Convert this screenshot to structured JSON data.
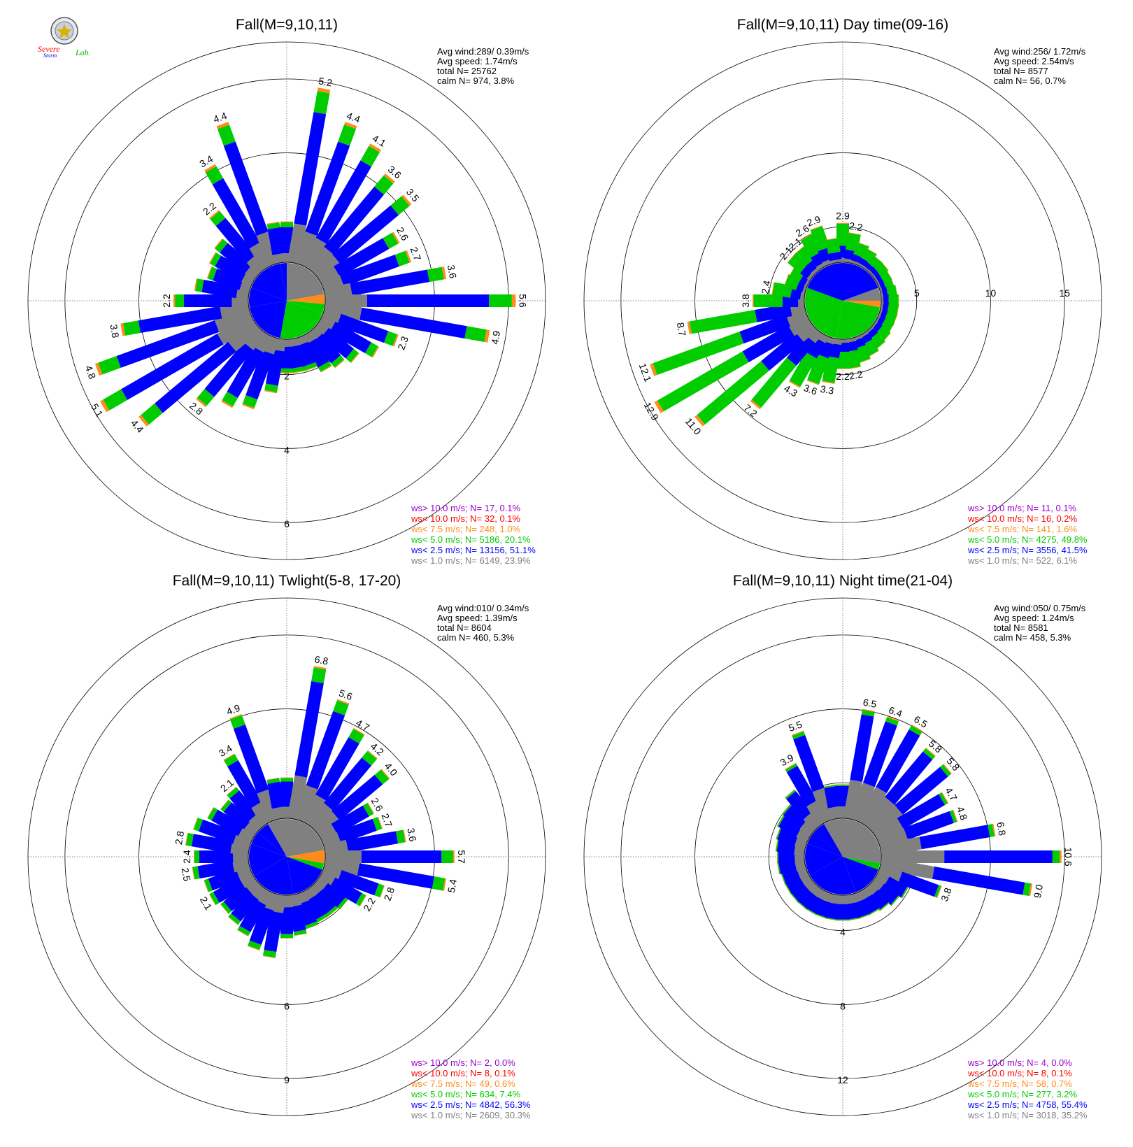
{
  "logo": {
    "text_top": "Severe",
    "text_bottom": "Storm",
    "text_lab": "Lab."
  },
  "colors": {
    "calm": "#808080",
    "ws1": "#808080",
    "ws2_5": "#0000ff",
    "ws5": "#00cc00",
    "ws7_5": "#ff8c1a",
    "ws10": "#ff0000",
    "ws_gt10": "#9900cc"
  },
  "chart_data": [
    {
      "type": "polar-bar",
      "title": "Fall(M=9,10,11)",
      "stats": [
        "Avg wind:289/ 0.39m/s",
        "Avg speed: 1.74m/s",
        "total N=     25762",
        "calm N=    974,   3.8%"
      ],
      "rings": [
        "2",
        "4",
        "6"
      ],
      "rmax": 7,
      "calm_pct": 3.8,
      "directions_deg": [
        0,
        10,
        20,
        30,
        40,
        50,
        60,
        70,
        80,
        90,
        100,
        110,
        120,
        130,
        140,
        150,
        160,
        170,
        180,
        190,
        200,
        210,
        220,
        230,
        240,
        250,
        260,
        270,
        280,
        290,
        300,
        310,
        320,
        330,
        340,
        350
      ],
      "totals": [
        1.2,
        5.2,
        4.4,
        4.1,
        3.6,
        3.5,
        2.6,
        2.7,
        3.6,
        5.6,
        4.9,
        2.3,
        1.9,
        1.5,
        1.3,
        1.2,
        1.0,
        1.0,
        1.0,
        1.6,
        2.2,
        2.4,
        2.8,
        4.4,
        5.1,
        4.8,
        3.8,
        2.2,
        1.6,
        1.3,
        1.4,
        1.5,
        2.2,
        3.4,
        4.4,
        1.2
      ],
      "labels": [
        "",
        "5.2",
        "4.4",
        "4.1",
        "3.6",
        "3.5",
        "2.6",
        "2.7",
        "3.6",
        "5.6",
        "4.9",
        "2.3",
        "",
        "",
        "",
        "",
        "",
        "",
        "",
        "",
        "",
        "",
        "2.8",
        "4.4",
        "5.1",
        "4.8",
        "3.8",
        "2.2",
        "",
        "",
        "",
        "",
        "2.2",
        "3.4",
        "4.4",
        ""
      ],
      "fill_shares": [
        0.53,
        0.58,
        0.55,
        0.55,
        0.45,
        0.39,
        0.24,
        0.37
      ],
      "legend": [
        {
          "text": "ws> 10.0 m/s; N=     17,   0.1%",
          "color": "#9900cc"
        },
        {
          "text": "ws< 10.0 m/s; N=     32,   0.1%",
          "color": "#ff0000"
        },
        {
          "text": "ws<  7.5 m/s; N=    248,   1.0%",
          "color": "#ff8c1a"
        },
        {
          "text": "ws<  5.0 m/s; N=  5186, 20.1%",
          "color": "#00cc00"
        },
        {
          "text": "ws<  2.5 m/s; N= 13156, 51.1%",
          "color": "#0000ff"
        },
        {
          "text": "ws<  1.0 m/s; N=  6149, 23.9%",
          "color": "#808080"
        }
      ]
    },
    {
      "type": "polar-bar",
      "title": "Fall(M=9,10,11) Day time(09-16)",
      "stats": [
        "Avg wind:256/ 1.72m/s",
        "Avg speed: 2.54m/s",
        "total N=      8577",
        "calm N=     56,   0.7%"
      ],
      "rings": [
        "5",
        "10",
        "15"
      ],
      "rmax": 17.5,
      "calm_pct": 0.7,
      "directions_deg": [
        0,
        10,
        20,
        30,
        40,
        50,
        60,
        70,
        80,
        90,
        100,
        110,
        120,
        130,
        140,
        150,
        160,
        170,
        180,
        190,
        200,
        210,
        220,
        230,
        240,
        250,
        260,
        270,
        280,
        290,
        300,
        310,
        320,
        330,
        340,
        350
      ],
      "totals": [
        2.9,
        2.2,
        1.6,
        1.4,
        1.2,
        1.2,
        1.1,
        1.1,
        1.2,
        1.3,
        1.3,
        1.3,
        1.3,
        1.4,
        1.5,
        1.7,
        1.9,
        2.2,
        2.2,
        3.3,
        3.6,
        4.3,
        7.2,
        11.0,
        12.9,
        12.1,
        8.7,
        3.8,
        2.4,
        1.6,
        1.5,
        2.1,
        2.1,
        2.6,
        2.9,
        1.8
      ],
      "labels": [
        "2.9",
        "2.2",
        "",
        "",
        "",
        "",
        "",
        "",
        "",
        "",
        "",
        "",
        "",
        "",
        "",
        "",
        "",
        "2.2",
        "2.2",
        "3.3",
        "3.6",
        "4.3",
        "7.2",
        "11.0",
        "12.9",
        "12.1",
        "8.7",
        "3.8",
        "2.4",
        "",
        "",
        "2.1",
        "2.1",
        "2.6",
        "2.9",
        ""
      ],
      "fill_shares": [
        0.12,
        0.07,
        0.05,
        0.05,
        0.07,
        0.24,
        0.26,
        0.14
      ],
      "legend": [
        {
          "text": "ws> 10.0 m/s; N=     11,   0.1%",
          "color": "#9900cc"
        },
        {
          "text": "ws< 10.0 m/s; N=     16,   0.2%",
          "color": "#ff0000"
        },
        {
          "text": "ws<  7.5 m/s; N=    141,   1.6%",
          "color": "#ff8c1a"
        },
        {
          "text": "ws<  5.0 m/s; N=  4275, 49.8%",
          "color": "#00cc00"
        },
        {
          "text": "ws<  2.5 m/s; N=  3556, 41.5%",
          "color": "#0000ff"
        },
        {
          "text": "ws<  1.0 m/s; N=    522,   6.1%",
          "color": "#808080"
        }
      ]
    },
    {
      "type": "polar-bar",
      "title": "Fall(M=9,10,11) Twlight(5-8, 17-20)",
      "stats": [
        "Avg wind:010/ 0.34m/s",
        "Avg speed: 1.39m/s",
        "total N=      8604",
        "calm N=    460,   5.3%"
      ],
      "rings": [
        "3",
        "6",
        "9"
      ],
      "rmax": 10.5,
      "calm_pct": 5.3,
      "directions_deg": [
        0,
        10,
        20,
        30,
        40,
        50,
        60,
        70,
        80,
        90,
        100,
        110,
        120,
        130,
        140,
        150,
        160,
        170,
        180,
        190,
        200,
        210,
        220,
        230,
        240,
        250,
        260,
        270,
        280,
        290,
        300,
        310,
        320,
        330,
        340,
        350
      ],
      "totals": [
        1.8,
        6.8,
        5.6,
        4.7,
        4.2,
        4.0,
        2.6,
        2.7,
        3.6,
        5.7,
        5.4,
        2.8,
        2.2,
        1.6,
        1.5,
        1.5,
        1.6,
        1.8,
        1.9,
        2.8,
        2.6,
        2.2,
        2.0,
        1.9,
        2.1,
        2.1,
        2.5,
        2.4,
        2.8,
        2.6,
        2.2,
        1.9,
        2.1,
        3.4,
        4.9,
        1.8
      ],
      "labels": [
        "",
        "6.8",
        "5.6",
        "4.7",
        "4.2",
        "4.0",
        "2.6",
        "2.7",
        "3.6",
        "5.7",
        "5.4",
        "2.8",
        "2.2",
        "",
        "",
        "",
        "",
        "",
        "",
        "",
        "",
        "",
        "",
        "",
        "2.1",
        "",
        "2.5",
        "2.4",
        "2.8",
        "",
        "",
        "",
        "2.1",
        "3.4",
        "4.9",
        ""
      ],
      "fill_shares": [
        0.55,
        0.46,
        0.25,
        0.29,
        0.33,
        0.39,
        0.25,
        0.33
      ],
      "legend": [
        {
          "text": "ws> 10.0 m/s; N=      2,   0.0%",
          "color": "#9900cc"
        },
        {
          "text": "ws< 10.0 m/s; N=      8,   0.1%",
          "color": "#ff0000"
        },
        {
          "text": "ws<  7.5 m/s; N=     49,   0.6%",
          "color": "#ff8c1a"
        },
        {
          "text": "ws<  5.0 m/s; N=    634,   7.4%",
          "color": "#00cc00"
        },
        {
          "text": "ws<  2.5 m/s; N=  4842, 56.3%",
          "color": "#0000ff"
        },
        {
          "text": "ws<  1.0 m/s; N=  2609, 30.3%",
          "color": "#808080"
        }
      ]
    },
    {
      "type": "polar-bar",
      "title": "Fall(M=9,10,11) Night time(21-04)",
      "stats": [
        "Avg wind:050/ 0.75m/s",
        "Avg speed: 1.24m/s",
        "total N=      8581",
        "calm N=    458,   5.3%"
      ],
      "rings": [
        "4",
        "8",
        "12"
      ],
      "rmax": 14,
      "calm_pct": 5.3,
      "directions_deg": [
        0,
        10,
        20,
        30,
        40,
        50,
        60,
        70,
        80,
        90,
        100,
        110,
        120,
        130,
        140,
        150,
        160,
        170,
        180,
        190,
        200,
        210,
        220,
        230,
        240,
        250,
        260,
        270,
        280,
        290,
        300,
        310,
        320,
        330,
        340,
        350
      ],
      "totals": [
        2.0,
        6.5,
        6.4,
        6.5,
        5.8,
        5.8,
        4.7,
        4.8,
        6.8,
        10.6,
        9.0,
        3.8,
        2.0,
        1.8,
        1.6,
        1.5,
        1.5,
        1.5,
        1.5,
        1.5,
        1.5,
        1.5,
        1.5,
        1.5,
        1.5,
        1.5,
        1.6,
        1.6,
        1.7,
        1.8,
        2.0,
        2.1,
        2.6,
        3.9,
        5.5,
        2.0
      ],
      "labels": [
        "",
        "6.5",
        "6.4",
        "6.5",
        "5.8",
        "5.8",
        "4.7",
        "4.8",
        "6.8",
        "10.6",
        "9.0",
        "3.8",
        "",
        "",
        "",
        "",
        "",
        "",
        "",
        "",
        "",
        "",
        "",
        "",
        "",
        "",
        "",
        "",
        "",
        "",
        "",
        "",
        "",
        "3.9",
        "5.5",
        ""
      ],
      "fill_shares": [
        0.44,
        0.2,
        0.15,
        0.1,
        0.12,
        0.12,
        0.25,
        0.29
      ],
      "legend": [
        {
          "text": "ws> 10.0 m/s; N=      4,   0.0%",
          "color": "#9900cc"
        },
        {
          "text": "ws< 10.0 m/s; N=      8,   0.1%",
          "color": "#ff0000"
        },
        {
          "text": "ws<  7.5 m/s; N=     58,   0.7%",
          "color": "#ff8c1a"
        },
        {
          "text": "ws<  5.0 m/s; N=    277,   3.2%",
          "color": "#00cc00"
        },
        {
          "text": "ws<  2.5 m/s; N=  4758, 55.4%",
          "color": "#0000ff"
        },
        {
          "text": "ws<  1.0 m/s; N=  3018, 35.2%",
          "color": "#808080"
        }
      ]
    }
  ]
}
